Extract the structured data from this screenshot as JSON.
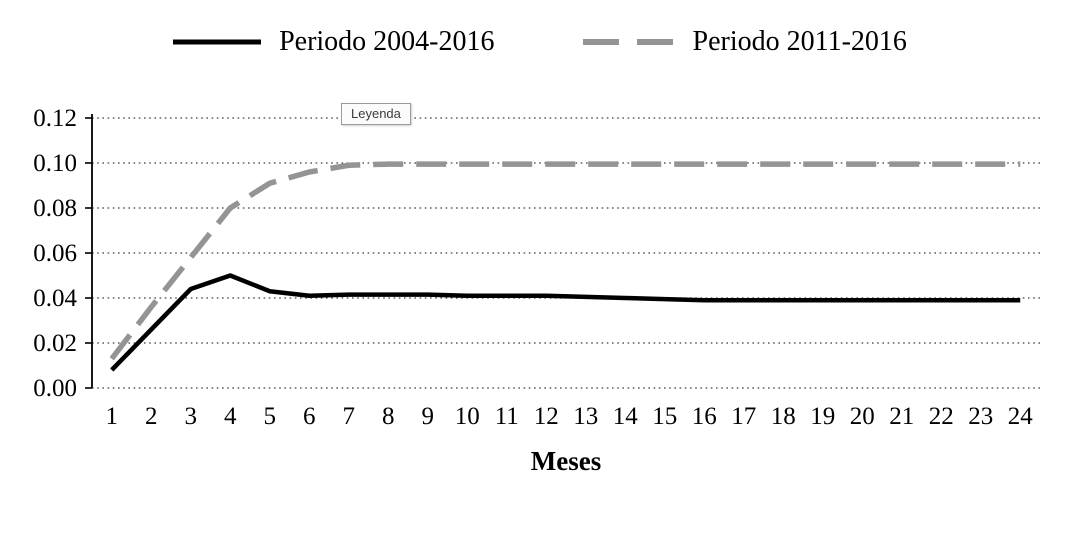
{
  "chart_data": {
    "type": "line",
    "x": [
      1,
      2,
      3,
      4,
      5,
      6,
      7,
      8,
      9,
      10,
      11,
      12,
      13,
      14,
      15,
      16,
      17,
      18,
      19,
      20,
      21,
      22,
      23,
      24
    ],
    "series": [
      {
        "name": "Periodo 2004-2016",
        "color": "#000000",
        "style": "solid",
        "values": [
          0.008,
          0.026,
          0.044,
          0.05,
          0.043,
          0.041,
          0.0415,
          0.0415,
          0.0415,
          0.041,
          0.041,
          0.041,
          0.0405,
          0.04,
          0.0395,
          0.039,
          0.039,
          0.039,
          0.039,
          0.039,
          0.039,
          0.039,
          0.039,
          0.039
        ]
      },
      {
        "name": "Periodo 2011-2016",
        "color": "#949494",
        "style": "dashed",
        "values": [
          0.013,
          0.036,
          0.058,
          0.08,
          0.091,
          0.096,
          0.099,
          0.0995,
          0.0995,
          0.0995,
          0.0995,
          0.0995,
          0.0995,
          0.0995,
          0.0995,
          0.0995,
          0.0995,
          0.0995,
          0.0995,
          0.0995,
          0.0995,
          0.0995,
          0.0995,
          0.0995
        ]
      }
    ],
    "title": "",
    "xlabel": "Meses",
    "ylabel": "",
    "ylim": [
      0,
      0.12
    ],
    "ytick_values": [
      0,
      0.02,
      0.04,
      0.06,
      0.08,
      0.1,
      0.12
    ],
    "ytick_labels": [
      "0.00",
      "0.02",
      "0.04",
      "0.06",
      "0.08",
      "0.10",
      "0.12"
    ],
    "grid": "horizontal-dotted",
    "legend_position": "top"
  },
  "annotation": {
    "leyenda_label": "Leyenda"
  },
  "axis": {
    "xlabel": "Meses"
  }
}
